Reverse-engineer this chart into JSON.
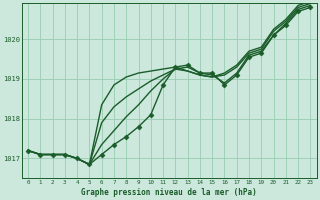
{
  "title": "Graphe pression niveau de la mer (hPa)",
  "background_color": "#cce8dc",
  "grid_color": "#99ccb3",
  "line_color": "#1a5c2a",
  "marker_color": "#1a5c2a",
  "xlim": [
    -0.5,
    23.5
  ],
  "ylim": [
    1016.5,
    1020.9
  ],
  "yticks": [
    1017,
    1018,
    1019,
    1020
  ],
  "xticks": [
    0,
    1,
    2,
    3,
    4,
    5,
    6,
    7,
    8,
    9,
    10,
    11,
    12,
    13,
    14,
    15,
    16,
    17,
    18,
    19,
    20,
    21,
    22,
    23
  ],
  "series": [
    {
      "y": [
        1017.2,
        1017.1,
        1017.1,
        1017.1,
        1017.0,
        1016.85,
        1017.1,
        1017.35,
        1017.55,
        1017.8,
        1018.1,
        1018.85,
        1019.3,
        1019.35,
        1019.15,
        1019.15,
        1018.85,
        1019.1,
        1019.55,
        1019.65,
        1020.1,
        1020.35,
        1020.7,
        1020.8
      ],
      "marker": "D",
      "markersize": 2.5,
      "linewidth": 1.0,
      "zorder": 4
    },
    {
      "y": [
        1017.2,
        1017.1,
        1017.1,
        1017.1,
        1017.0,
        1016.85,
        1017.35,
        1017.7,
        1018.05,
        1018.35,
        1018.7,
        1019.0,
        1019.25,
        1019.3,
        1019.15,
        1019.1,
        1018.9,
        1019.15,
        1019.6,
        1019.7,
        1020.1,
        1020.4,
        1020.75,
        1020.85
      ],
      "marker": null,
      "markersize": 0,
      "linewidth": 1.0,
      "zorder": 3
    },
    {
      "y": [
        1017.2,
        1017.1,
        1017.1,
        1017.1,
        1017.0,
        1016.85,
        1017.9,
        1018.3,
        1018.55,
        1018.75,
        1018.95,
        1019.1,
        1019.25,
        1019.2,
        1019.1,
        1019.05,
        1019.1,
        1019.3,
        1019.65,
        1019.75,
        1020.2,
        1020.45,
        1020.8,
        1020.9
      ],
      "marker": null,
      "markersize": 0,
      "linewidth": 1.0,
      "zorder": 3
    },
    {
      "y": [
        1017.2,
        1017.1,
        1017.1,
        1017.1,
        1017.0,
        1016.85,
        1018.35,
        1018.85,
        1019.05,
        1019.15,
        1019.2,
        1019.25,
        1019.3,
        1019.2,
        1019.1,
        1019.05,
        1019.15,
        1019.35,
        1019.7,
        1019.8,
        1020.25,
        1020.5,
        1020.85,
        1020.95
      ],
      "marker": null,
      "markersize": 0,
      "linewidth": 1.0,
      "zorder": 2
    }
  ]
}
